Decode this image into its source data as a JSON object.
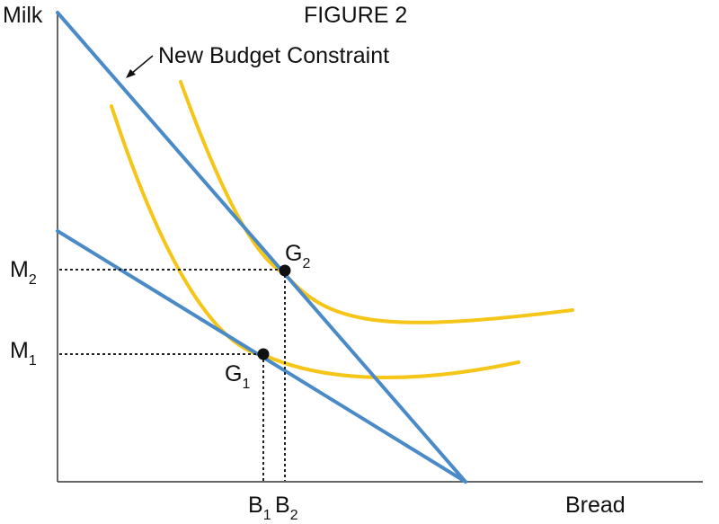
{
  "title": "FIGURE 2",
  "axes": {
    "y_label": "Milk",
    "x_label": "Bread"
  },
  "annotation": {
    "text": "New Budget Constraint"
  },
  "points": {
    "g1": {
      "letter": "G",
      "sub": "1"
    },
    "g2": {
      "letter": "G",
      "sub": "2"
    }
  },
  "ticks": {
    "m1": {
      "letter": "M",
      "sub": "1"
    },
    "m2": {
      "letter": "M",
      "sub": "2"
    },
    "b1": {
      "letter": "B",
      "sub": "1"
    },
    "b2": {
      "letter": "B",
      "sub": "2"
    }
  },
  "colors": {
    "budget_line": "#4a8ac6",
    "indifference_curve": "#f5c518",
    "axis": "#333333",
    "guide": "#222222",
    "point": "#111111"
  }
}
